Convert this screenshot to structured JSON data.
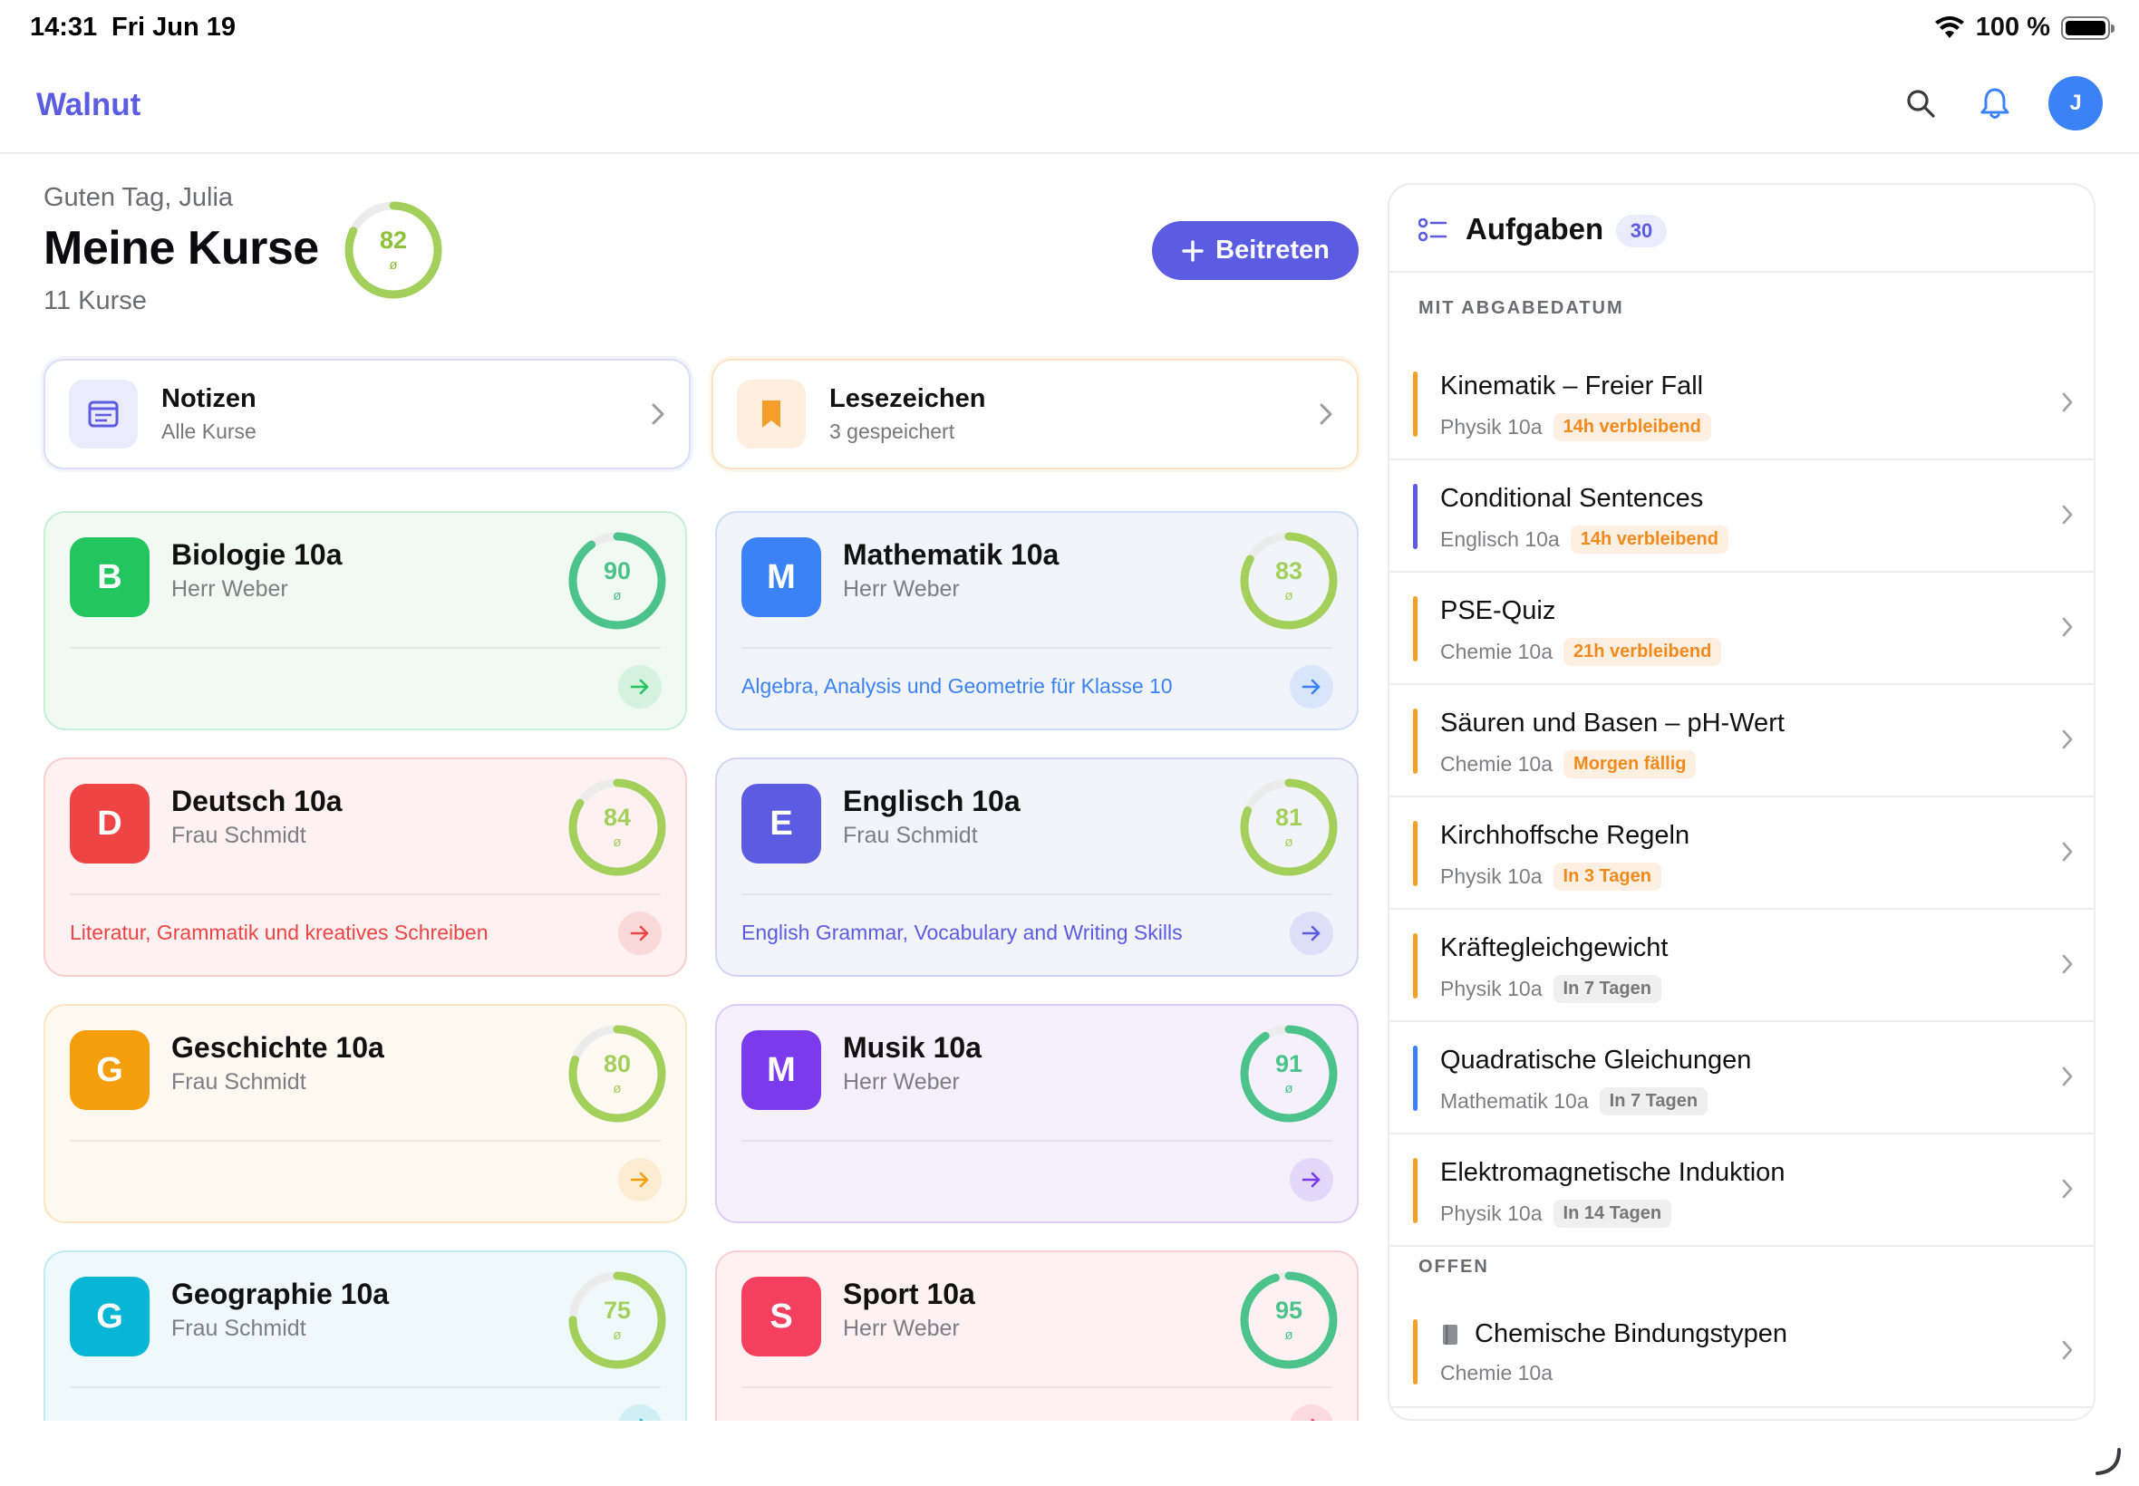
{
  "status": {
    "time": "14:31",
    "date": "Fri Jun 19",
    "battery": "100 %"
  },
  "app": {
    "brand": "Walnut",
    "avatar_initial": "J"
  },
  "header": {
    "greeting": "Guten Tag, Julia",
    "title": "Meine Kurse",
    "course_count": "11 Kurse",
    "overall_score": "82",
    "avg_symbol": "ø",
    "join_label": "Beitreten"
  },
  "quick": [
    {
      "title": "Notizen",
      "subtitle": "Alle Kurse",
      "icon": "notes-icon",
      "color": "#5b5ce2"
    },
    {
      "title": "Lesezeichen",
      "subtitle": "3 gespeichert",
      "icon": "bookmark-icon",
      "color": "#f59e2a"
    }
  ],
  "courses": [
    {
      "letter": "B",
      "name": "Biologie 10a",
      "teacher": "Herr Weber",
      "score": "90",
      "desc": "",
      "color": "#22c55e",
      "bg": "#f0faf3",
      "ring": "#4cc38a"
    },
    {
      "letter": "M",
      "name": "Mathematik 10a",
      "teacher": "Herr Weber",
      "score": "83",
      "desc": "Algebra, Analysis und Geometrie für Klasse 10",
      "color": "#3b82f6",
      "bg": "#f1f5fb",
      "ring": "#a3d05b"
    },
    {
      "letter": "D",
      "name": "Deutsch 10a",
      "teacher": "Frau Schmidt",
      "score": "84",
      "desc": "Literatur, Grammatik und kreatives Schreiben",
      "color": "#ef4444",
      "bg": "#fdf1f1",
      "ring": "#a3d05b"
    },
    {
      "letter": "E",
      "name": "Englisch 10a",
      "teacher": "Frau Schmidt",
      "score": "81",
      "desc": "English Grammar, Vocabulary and Writing Skills",
      "color": "#5b5ce2",
      "bg": "#f2f3fb",
      "ring": "#a3d05b"
    },
    {
      "letter": "G",
      "name": "Geschichte 10a",
      "teacher": "Frau Schmidt",
      "score": "80",
      "desc": "",
      "color": "#f59e0b",
      "bg": "#fdf8f0",
      "ring": "#a3d05b"
    },
    {
      "letter": "M",
      "name": "Musik 10a",
      "teacher": "Herr Weber",
      "score": "91",
      "desc": "",
      "color": "#7c3aed",
      "bg": "#f4f1fc",
      "ring": "#4cc38a"
    },
    {
      "letter": "G",
      "name": "Geographie 10a",
      "teacher": "Frau Schmidt",
      "score": "75",
      "desc": "",
      "color": "#06b6d4",
      "bg": "#eff9fb",
      "ring": "#a3d05b"
    },
    {
      "letter": "S",
      "name": "Sport 10a",
      "teacher": "Herr Weber",
      "score": "95",
      "desc": "",
      "color": "#f43f5e",
      "bg": "#fdf1f3",
      "ring": "#4cc38a"
    }
  ],
  "tasks": {
    "title": "Aufgaben",
    "count": "30",
    "section_due": "MIT ABGABEDATUM",
    "section_open": "OFFEN",
    "items": [
      {
        "title": "Kinematik – Freier Fall",
        "course": "Physik 10a",
        "badge": "14h verbleibend",
        "urgent": true,
        "color": "#f59e2a"
      },
      {
        "title": "Conditional Sentences",
        "course": "Englisch 10a",
        "badge": "14h verbleibend",
        "urgent": true,
        "color": "#5b5ce2"
      },
      {
        "title": "PSE-Quiz",
        "course": "Chemie 10a",
        "badge": "21h verbleibend",
        "urgent": true,
        "color": "#f59e2a"
      },
      {
        "title": "Säuren und Basen – pH-Wert",
        "course": "Chemie 10a",
        "badge": "Morgen fällig",
        "urgent": true,
        "color": "#f59e2a"
      },
      {
        "title": "Kirchhoffsche Regeln",
        "course": "Physik 10a",
        "badge": "In 3 Tagen",
        "urgent": true,
        "color": "#f59e2a"
      },
      {
        "title": "Kräftegleichgewicht",
        "course": "Physik 10a",
        "badge": "In 7 Tagen",
        "urgent": false,
        "color": "#f59e2a"
      },
      {
        "title": "Quadratische Gleichungen",
        "course": "Mathematik 10a",
        "badge": "In 7 Tagen",
        "urgent": false,
        "color": "#3b82f6"
      },
      {
        "title": "Elektromagnetische Induktion",
        "course": "Physik 10a",
        "badge": "In 14 Tagen",
        "urgent": false,
        "color": "#f59e2a"
      }
    ],
    "open_items": [
      {
        "title": "Chemische Bindungstypen",
        "course": "Chemie 10a",
        "color": "#f59e2a"
      }
    ]
  }
}
